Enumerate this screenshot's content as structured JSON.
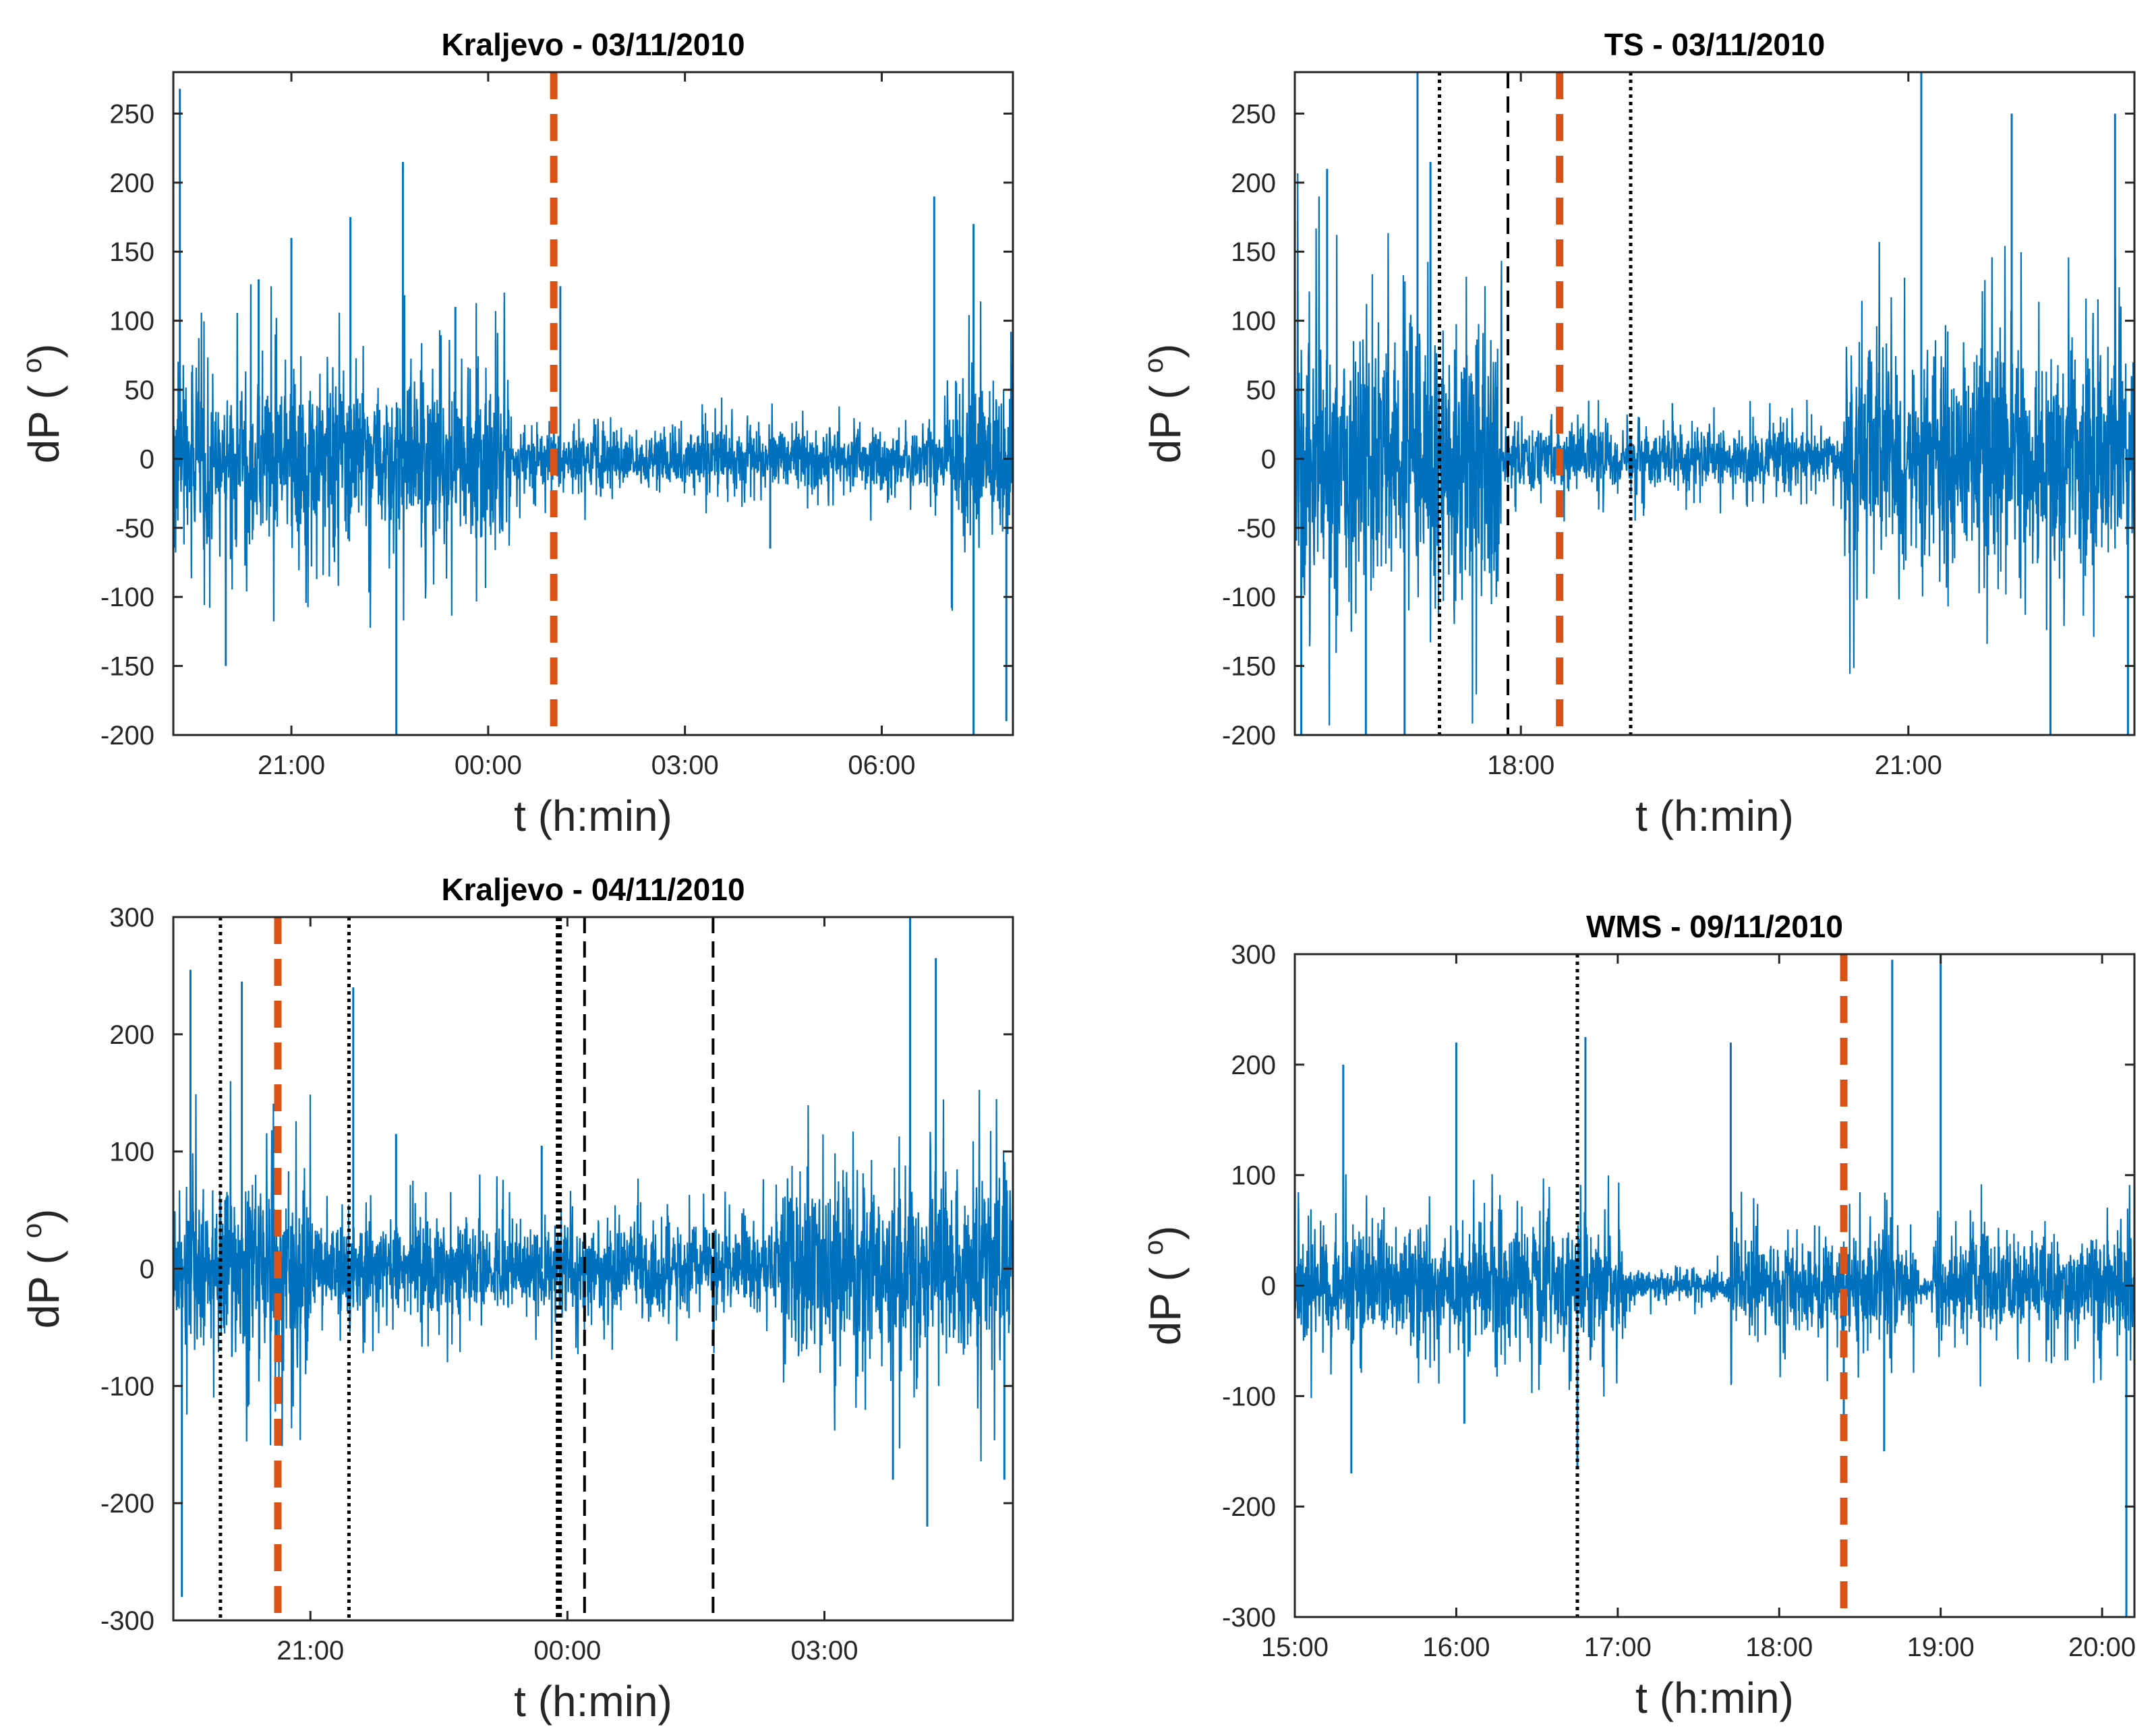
{
  "colors": {
    "signal": "#0072BD",
    "event": "#D95319",
    "marker": "#000000",
    "axis": "#262626"
  },
  "chart_data": [
    {
      "type": "line",
      "title": "Kraljevo - 03/11/2010",
      "xlabel": "t (h:min)",
      "ylabel": "dP (",
      "ylabel_sup": "o",
      "ylabel_close": ")",
      "ylim": [
        -200,
        280
      ],
      "yticks": [
        -200,
        -150,
        -100,
        -50,
        0,
        50,
        100,
        150,
        200,
        250
      ],
      "xlim": [
        19.2,
        32.0
      ],
      "xticks": [
        21,
        24,
        27,
        30
      ],
      "xtick_labels": [
        "21:00",
        "00:00",
        "03:00",
        "06:00"
      ],
      "segments": [
        {
          "from": 19.2,
          "to": 24.35,
          "amp": 55
        },
        {
          "from": 24.35,
          "to": 31.0,
          "amp": 20
        },
        {
          "from": 31.0,
          "to": 32.0,
          "amp": 50
        }
      ],
      "spikes": [
        [
          19.3,
          268
        ],
        [
          20.5,
          130
        ],
        [
          21.0,
          160
        ],
        [
          21.9,
          175
        ],
        [
          22.7,
          215
        ],
        [
          23.5,
          110
        ],
        [
          25.1,
          125
        ],
        [
          28.3,
          -65
        ],
        [
          30.8,
          190
        ],
        [
          31.4,
          170
        ],
        [
          31.4,
          -200
        ],
        [
          31.9,
          -190
        ],
        [
          22.6,
          -200
        ],
        [
          20.0,
          -150
        ]
      ],
      "events": [
        {
          "t": 25.0,
          "style": "event"
        }
      ]
    },
    {
      "type": "line",
      "title": "TS - 03/11/2010",
      "xlabel": "t (h:min)",
      "ylabel": "dP (",
      "ylabel_sup": "o",
      "ylabel_close": ")",
      "ylim": [
        -200,
        280
      ],
      "yticks": [
        -200,
        -150,
        -100,
        -50,
        0,
        50,
        100,
        150,
        200,
        250
      ],
      "xlim": [
        16.25,
        22.75
      ],
      "xticks": [
        18,
        21
      ],
      "xtick_labels": [
        "18:00",
        "21:00"
      ],
      "segments": [
        {
          "from": 16.25,
          "to": 17.85,
          "amp": 90
        },
        {
          "from": 17.85,
          "to": 20.5,
          "amp": 20
        },
        {
          "from": 20.5,
          "to": 22.75,
          "amp": 70
        }
      ],
      "spikes": [
        [
          16.5,
          210
        ],
        [
          17.2,
          280
        ],
        [
          17.3,
          215
        ],
        [
          16.8,
          -200
        ],
        [
          17.1,
          -200
        ],
        [
          21.1,
          280
        ],
        [
          21.8,
          250
        ],
        [
          22.6,
          250
        ],
        [
          22.1,
          -200
        ],
        [
          22.7,
          -200
        ],
        [
          16.3,
          -200
        ]
      ],
      "events": [
        {
          "t": 17.37,
          "style": "dotted"
        },
        {
          "t": 17.9,
          "style": "dashed"
        },
        {
          "t": 18.3,
          "style": "event"
        },
        {
          "t": 18.85,
          "style": "dotted"
        }
      ]
    },
    {
      "type": "line",
      "title": "Kraljevo - 04/11/2010",
      "xlabel": "t (h:min)",
      "ylabel": "dP (",
      "ylabel_sup": "o",
      "ylabel_close": ")",
      "ylim": [
        -300,
        300
      ],
      "yticks": [
        -300,
        -200,
        -100,
        0,
        100,
        200,
        300
      ],
      "xlim": [
        19.4,
        29.2
      ],
      "xticks": [
        21,
        24,
        27
      ],
      "xtick_labels": [
        "21:00",
        "00:00",
        "03:00"
      ],
      "segments": [
        {
          "from": 19.4,
          "to": 21.0,
          "amp": 70
        },
        {
          "from": 21.0,
          "to": 26.5,
          "amp": 35
        },
        {
          "from": 26.5,
          "to": 29.2,
          "amp": 75
        }
      ],
      "spikes": [
        [
          19.5,
          -280
        ],
        [
          19.6,
          255
        ],
        [
          20.2,
          245
        ],
        [
          21.5,
          240
        ],
        [
          22.0,
          115
        ],
        [
          23.7,
          105
        ],
        [
          28.0,
          300
        ],
        [
          28.3,
          265
        ],
        [
          28.2,
          -220
        ],
        [
          27.8,
          -180
        ],
        [
          29.1,
          -180
        ]
      ],
      "events": [
        {
          "t": 19.95,
          "style": "dotted"
        },
        {
          "t": 20.62,
          "style": "event"
        },
        {
          "t": 21.45,
          "style": "dotted"
        },
        {
          "t": 23.9,
          "style": "dotted-thick"
        },
        {
          "t": 24.2,
          "style": "dashed"
        },
        {
          "t": 25.7,
          "style": "dashed"
        }
      ]
    },
    {
      "type": "line",
      "title": "WMS - 09/11/2010",
      "xlabel": "t (h:min)",
      "ylabel": "dP (",
      "ylabel_sup": "o",
      "ylabel_close": ")",
      "ylim": [
        -300,
        300
      ],
      "yticks": [
        -300,
        -200,
        -100,
        0,
        100,
        200,
        300
      ],
      "xlim": [
        15.0,
        20.2
      ],
      "xticks": [
        15,
        16,
        17,
        18,
        19,
        20
      ],
      "xtick_labels": [
        "15:00",
        "16:00",
        "17:00",
        "18:00",
        "19:00",
        "20:00"
      ],
      "segments": [
        {
          "from": 15.0,
          "to": 17.05,
          "amp": 45
        },
        {
          "from": 17.05,
          "to": 17.7,
          "amp": 12
        },
        {
          "from": 17.7,
          "to": 18.85,
          "amp": 40
        },
        {
          "from": 18.85,
          "to": 18.95,
          "amp": 10
        },
        {
          "from": 18.95,
          "to": 20.2,
          "amp": 40
        }
      ],
      "spikes": [
        [
          15.3,
          200
        ],
        [
          15.35,
          -170
        ],
        [
          16.0,
          220
        ],
        [
          16.05,
          -125
        ],
        [
          16.8,
          225
        ],
        [
          16.75,
          -165
        ],
        [
          17.7,
          220
        ],
        [
          18.4,
          -125
        ],
        [
          18.7,
          295
        ],
        [
          18.65,
          -150
        ],
        [
          19.0,
          300
        ],
        [
          20.15,
          -300
        ]
      ],
      "events": [
        {
          "t": 16.75,
          "style": "dotted"
        },
        {
          "t": 18.4,
          "style": "event"
        }
      ]
    }
  ]
}
